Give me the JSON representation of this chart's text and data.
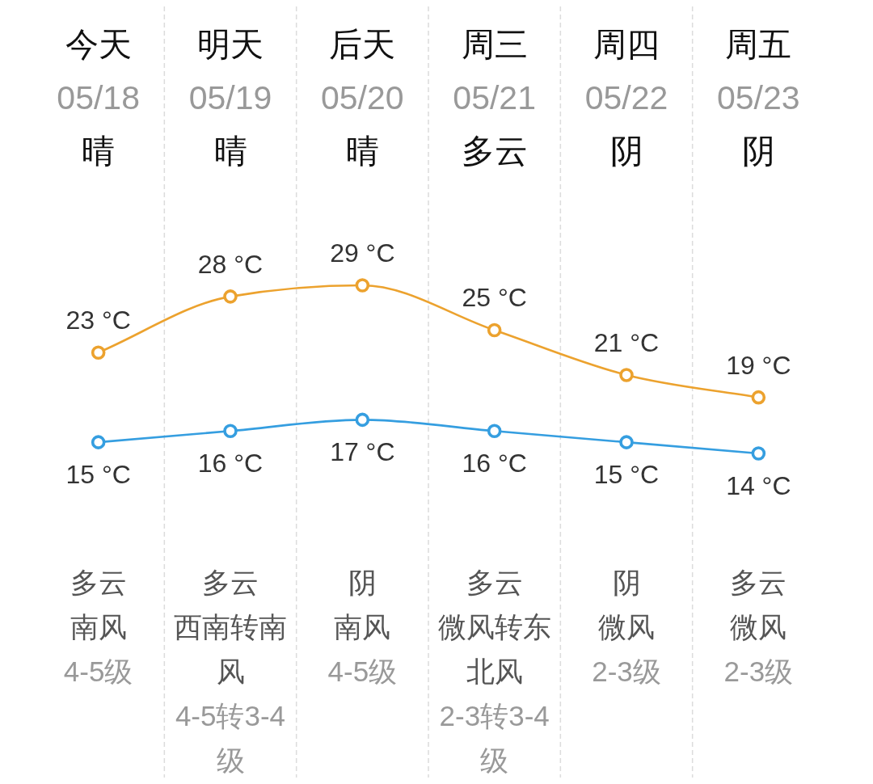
{
  "chart_data": {
    "type": "line",
    "categories": [
      "今天\n05/18\n晴",
      "明天\n05/19\n晴",
      "后天\n05/20\n晴",
      "周三\n05/21\n多云",
      "周四\n05/22\n阴",
      "周五\n05/23\n阴"
    ],
    "series": [
      {
        "color": "#eca22e",
        "values": [
          23,
          28,
          29,
          25,
          21,
          19
        ],
        "value_labels": [
          "23 °C",
          "28 °C",
          "29 °C",
          "25 °C",
          "21 °C",
          "19 °C"
        ]
      },
      {
        "color": "#359ee0",
        "values": [
          15,
          16,
          17,
          16,
          15,
          14
        ],
        "value_labels": [
          "15 °C",
          "16 °C",
          "17 °C",
          "16 °C",
          "15 °C",
          "14 °C"
        ]
      }
    ],
    "annotations": [
      "多云",
      "南风",
      "4-5级",
      "多云",
      "西南转南风",
      "4-5转3-4级",
      "阴",
      "南风",
      "4-5级",
      "多云",
      "微风转东北风",
      "2-3转3-4级",
      "阴",
      "微风",
      "2-3级",
      "多云",
      "微风",
      "2-3级"
    ],
    "marker": "circle",
    "grid": "x",
    "tick_labels": "x"
  }
}
